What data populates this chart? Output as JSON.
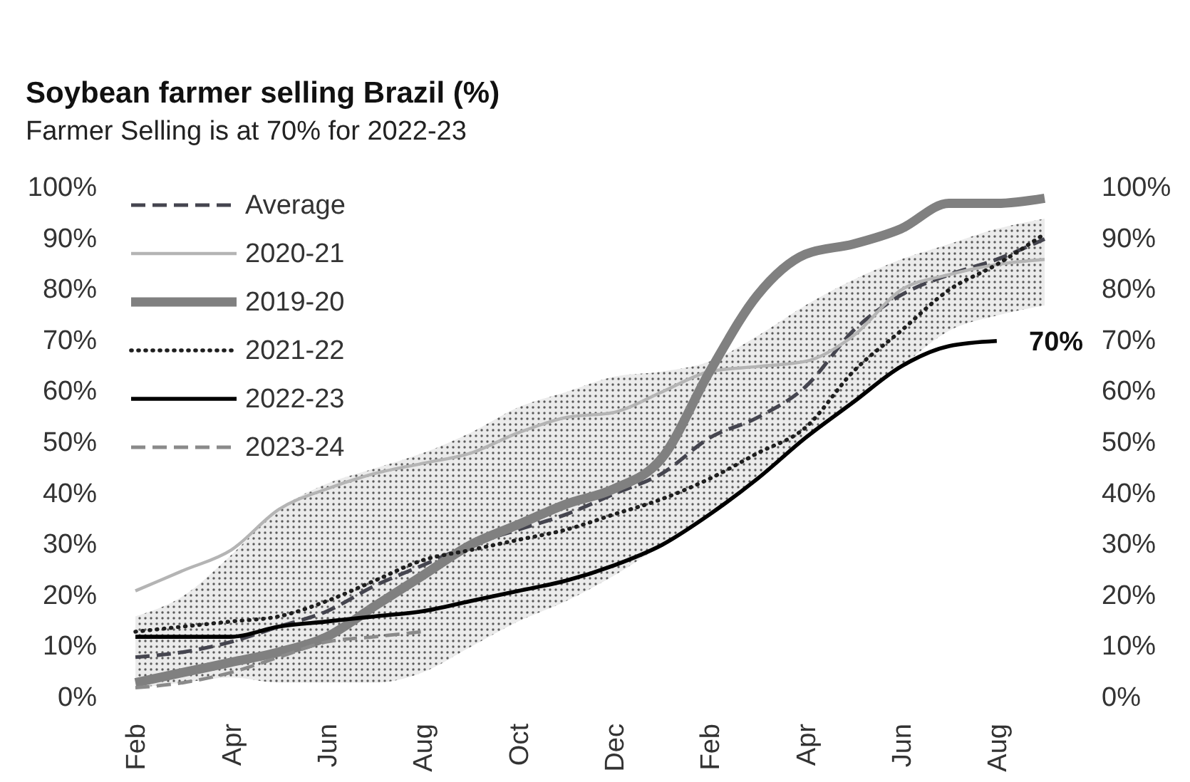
{
  "chart_data": {
    "type": "line",
    "title": "Soybean farmer selling Brazil (%)",
    "subtitle": "Farmer Selling is at 70% for 2022-23",
    "categories": [
      "Feb",
      null,
      "Apr",
      null,
      "Jun",
      null,
      "Aug",
      null,
      "Oct",
      null,
      "Dec",
      null,
      "Feb",
      null,
      "Apr",
      null,
      "Jun",
      null,
      "Aug",
      null
    ],
    "ylim": [
      0,
      100
    ],
    "yticks": [
      {
        "value": 0,
        "label": "0%"
      },
      {
        "value": 10,
        "label": "10%"
      },
      {
        "value": 20,
        "label": "20%"
      },
      {
        "value": 30,
        "label": "30%"
      },
      {
        "value": 40,
        "label": "40%"
      },
      {
        "value": 50,
        "label": "50%"
      },
      {
        "value": 60,
        "label": "60%"
      },
      {
        "value": 70,
        "label": "70%"
      },
      {
        "value": 80,
        "label": "80%"
      },
      {
        "value": 90,
        "label": "90%"
      },
      {
        "value": 100,
        "label": "100%"
      }
    ],
    "y2lim": [
      0,
      100
    ],
    "y2ticks": [
      {
        "value": 0,
        "label": "0%"
      },
      {
        "value": 10,
        "label": "10%"
      },
      {
        "value": 20,
        "label": "20%"
      },
      {
        "value": 30,
        "label": "30%"
      },
      {
        "value": 40,
        "label": "40%"
      },
      {
        "value": 50,
        "label": "50%"
      },
      {
        "value": 60,
        "label": "60%"
      },
      {
        "value": 70,
        "label": "70%"
      },
      {
        "value": 80,
        "label": "80%"
      },
      {
        "value": 90,
        "label": "90%"
      },
      {
        "value": 100,
        "label": "100%"
      }
    ],
    "series": [
      {
        "name": "Average",
        "color": "#45454f",
        "line_style": "dashed",
        "values": [
          8,
          9,
          11,
          14,
          17,
          22,
          26,
          30,
          33,
          36,
          40,
          44,
          51,
          55,
          61,
          72,
          79,
          83,
          86,
          90
        ],
        "lower": [
          2,
          3,
          4,
          3,
          3,
          3,
          5,
          10,
          15,
          19,
          24,
          30,
          36,
          43,
          51,
          58,
          65,
          72,
          75,
          77
        ],
        "upper": [
          16,
          20,
          28,
          37,
          42,
          45,
          48,
          52,
          57,
          60,
          63,
          64,
          66,
          71,
          77,
          82,
          86,
          89,
          92,
          94
        ]
      },
      {
        "name": "2020-21",
        "color": "#b4b4b4",
        "line_style": "solid",
        "values": [
          21,
          25,
          29,
          37,
          41,
          44,
          46,
          48,
          52,
          55,
          56,
          60,
          64,
          65,
          66,
          71,
          80,
          83,
          85,
          86
        ]
      },
      {
        "name": "2019-20",
        "color": "#808080",
        "line_style": "solid",
        "values": [
          3,
          5,
          7,
          9,
          12,
          18,
          24,
          30,
          34,
          38,
          41,
          47,
          64,
          79,
          87,
          89,
          92,
          97,
          97,
          98
        ]
      },
      {
        "name": "2021-22",
        "color": "#1e1e1e",
        "line_style": "dotted",
        "values": [
          13,
          14,
          15,
          16,
          19,
          23,
          27,
          29,
          31,
          33,
          36,
          39,
          43,
          48,
          53,
          64,
          72,
          80,
          85,
          91
        ]
      },
      {
        "name": "2022-23",
        "color": "#000000",
        "line_style": "solid",
        "values": [
          12,
          12,
          12,
          14,
          15,
          16,
          17,
          19,
          21,
          23,
          26,
          30,
          36,
          43,
          51,
          58,
          65,
          69,
          70,
          null
        ]
      },
      {
        "name": "2023-24",
        "color": "#8a8a8a",
        "line_style": "dashed",
        "values": [
          2,
          3,
          5,
          8,
          11,
          12,
          13,
          null,
          null,
          null,
          null,
          null,
          null,
          null,
          null,
          null,
          null,
          null,
          null,
          null
        ]
      }
    ],
    "legend": "top left",
    "annotations": [
      "70%"
    ]
  }
}
